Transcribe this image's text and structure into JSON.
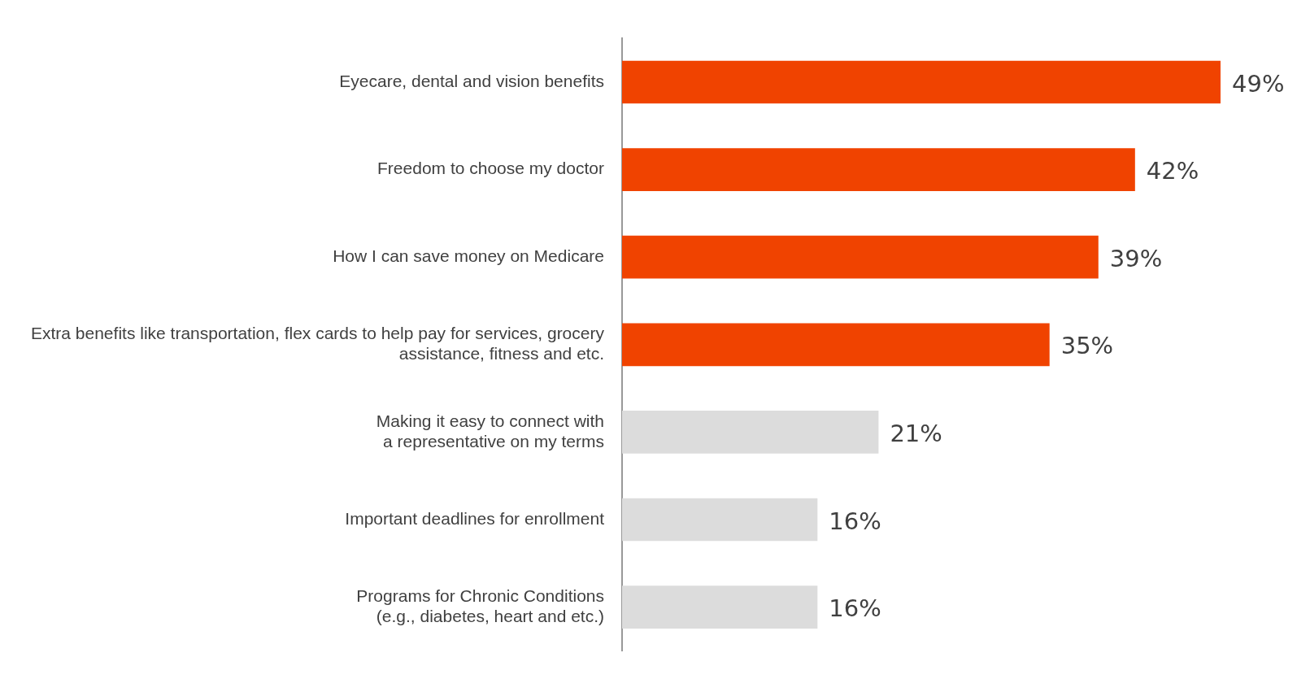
{
  "chart_data": {
    "type": "bar",
    "orientation": "horizontal",
    "categories": [
      "Eyecare, dental and vision benefits",
      "Freedom to choose my doctor",
      "How I can save money on Medicare",
      "Extra benefits like transportation, flex cards to help pay for services, grocery\nassistance, fitness and etc.",
      "Making it easy to connect with\na representative on my terms",
      "Important deadlines for enrollment",
      "Programs for Chronic Conditions\n(e.g., diabetes, heart and etc.)"
    ],
    "values": [
      49,
      42,
      39,
      35,
      21,
      16,
      16
    ],
    "value_labels": [
      "49%",
      "42%",
      "39%",
      "35%",
      "21%",
      "16%",
      "16%"
    ],
    "colors": [
      "#f04300",
      "#f04300",
      "#f04300",
      "#f04300",
      "#dcdcdc",
      "#dcdcdc",
      "#dcdcdc"
    ],
    "grid": false,
    "legend": false
  }
}
